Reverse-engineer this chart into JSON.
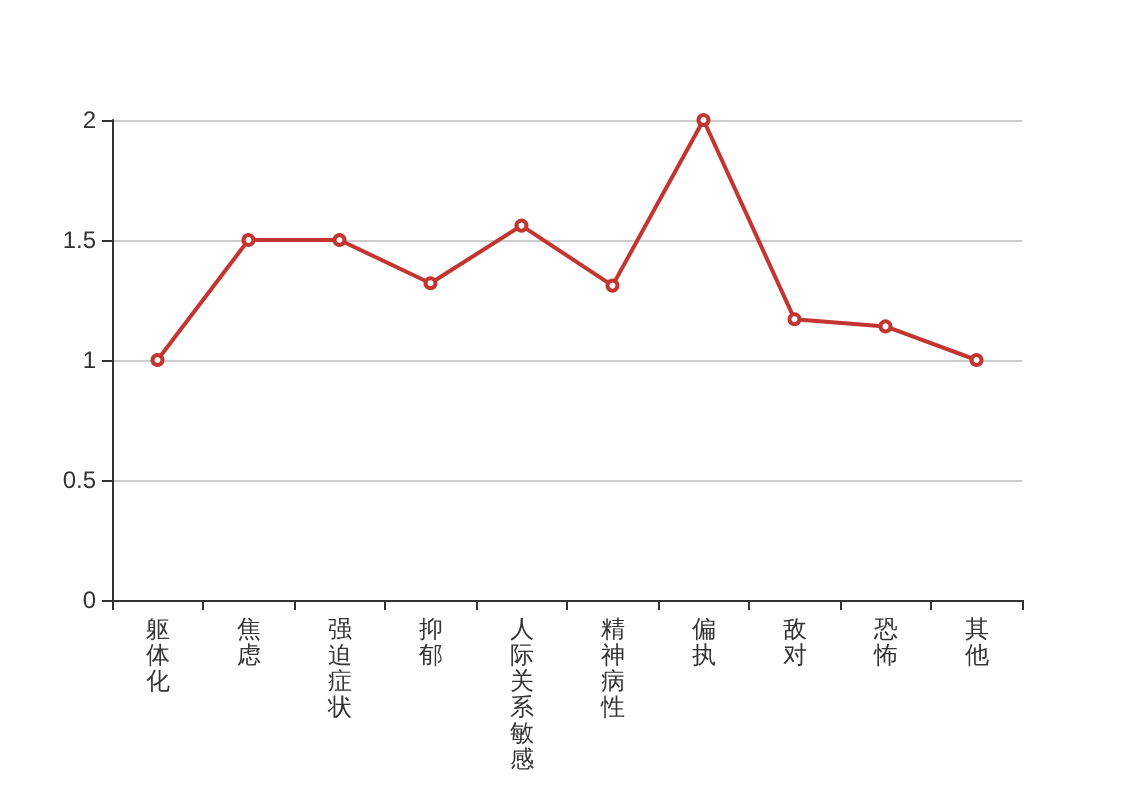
{
  "chart_data": {
    "type": "line",
    "categories": [
      "躯体化",
      "焦虑",
      "强迫症状",
      "抑郁",
      "人际关系敏感",
      "精神病性",
      "偏执",
      "敌对",
      "恐怖",
      "其他"
    ],
    "series": [
      {
        "color": "#c23531",
        "values": [
          1,
          1.5,
          1.5,
          1.32,
          1.56,
          1.31,
          2,
          1.17,
          1.14,
          1
        ]
      }
    ],
    "ylim": [
      0,
      2
    ],
    "yticks": [
      0,
      0.5,
      1,
      1.5,
      2
    ],
    "grid": "y",
    "marker": "circle",
    "line_style": "solid"
  }
}
